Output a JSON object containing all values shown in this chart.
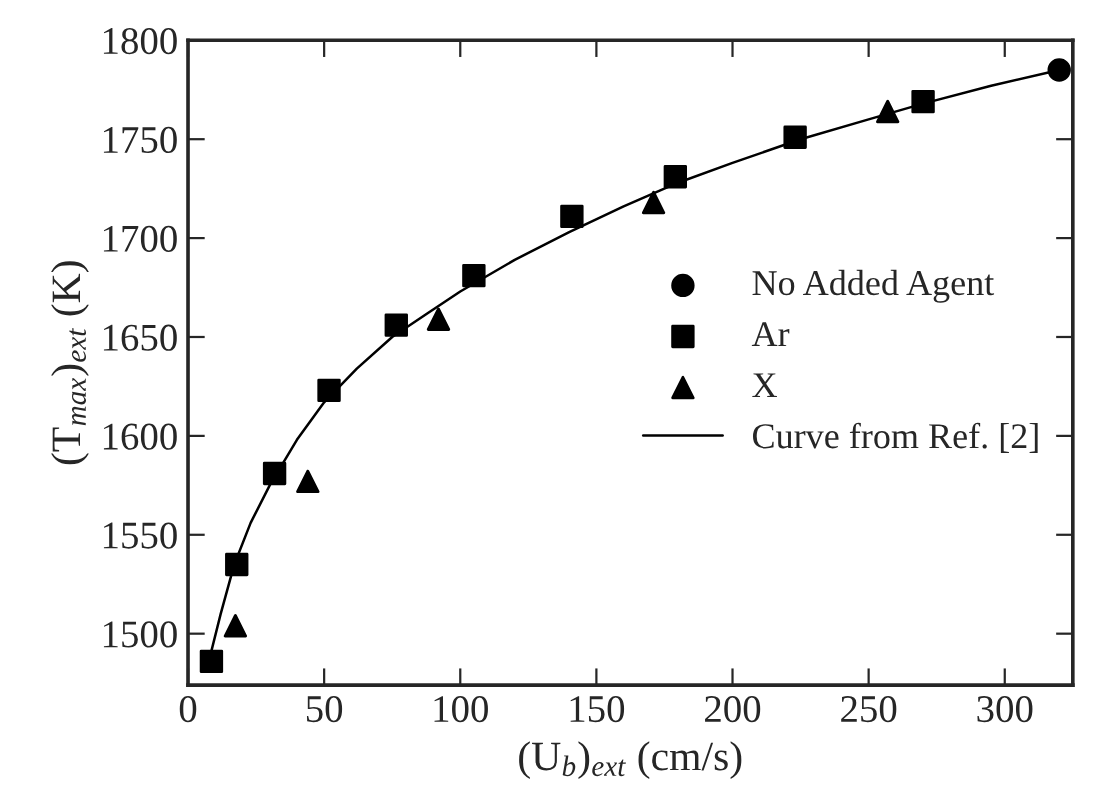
{
  "chart_data": {
    "type": "scatter",
    "xlabel": "(U$_{b}$)$_{ext}$ (cm/s)",
    "ylabel": "(T$_{max}$)$_{ext}$ (K)",
    "xlim": [
      0,
      325
    ],
    "ylim": [
      1474,
      1800
    ],
    "xticks": [
      0,
      50,
      100,
      150,
      200,
      250,
      300
    ],
    "yticks": [
      1500,
      1550,
      1600,
      1650,
      1700,
      1750,
      1800
    ],
    "grid": false,
    "legend": "right",
    "series": [
      {
        "name": "No Added Agent",
        "marker": "circle",
        "color": "#000000",
        "x": [
          320
        ],
        "values": [
          1785
        ]
      },
      {
        "name": "Ar",
        "marker": "square",
        "color": "#000000",
        "x": [
          8.6,
          17.9,
          31.8,
          51.8,
          76.5,
          105,
          141,
          179,
          223,
          270
        ],
        "values": [
          1486,
          1535,
          1581,
          1623,
          1656,
          1681,
          1711,
          1731,
          1751,
          1769
        ]
      },
      {
        "name": "X",
        "marker": "triangle",
        "color": "#000000",
        "x": [
          17.4,
          44,
          92,
          171,
          257
        ],
        "values": [
          1504,
          1577,
          1659,
          1718,
          1764
        ]
      },
      {
        "name": "Curve from Ref. [2]",
        "type": "line",
        "marker": "none",
        "line_style": "solid",
        "color": "#000000",
        "x": [
          8,
          12,
          17,
          23,
          30,
          40,
          50,
          62,
          75,
          88,
          100,
          120,
          140,
          160,
          180,
          200,
          225,
          250,
          270,
          295,
          320
        ],
        "values": [
          1488,
          1510,
          1535,
          1556,
          1575,
          1598,
          1617,
          1634,
          1650,
          1662,
          1673,
          1689,
          1703,
          1716,
          1728,
          1738,
          1750,
          1760,
          1768,
          1777,
          1785
        ]
      }
    ]
  }
}
